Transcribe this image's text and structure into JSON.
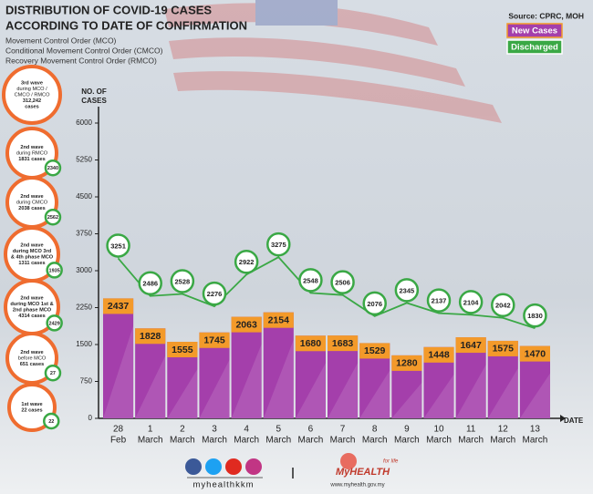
{
  "chart_data": {
    "type": "bar",
    "title_lines": [
      "DISTRIBUTION OF COVID-19 CASES",
      "ACCORDING TO DATE OF CONFIRMATION"
    ],
    "subtitle_lines": [
      "Movement Control Order (MCO)",
      "Conditional Movement Control Order (CMCO)",
      "Recovery Movement Control Order (RMCO)"
    ],
    "source": "Source: CPRC, MOH",
    "y_label": [
      "NO. OF",
      "CASES"
    ],
    "x_label": "DATE",
    "categories": [
      [
        "28",
        "Feb"
      ],
      [
        "1",
        "March"
      ],
      [
        "2",
        "March"
      ],
      [
        "3",
        "March"
      ],
      [
        "4",
        "March"
      ],
      [
        "5",
        "March"
      ],
      [
        "6",
        "March"
      ],
      [
        "7",
        "March"
      ],
      [
        "8",
        "March"
      ],
      [
        "9",
        "March"
      ],
      [
        "10",
        "March"
      ],
      [
        "11",
        "March"
      ],
      [
        "12",
        "March"
      ],
      [
        "13",
        "March"
      ]
    ],
    "series": [
      {
        "name": "New Cases",
        "color": "#a43fab",
        "label_color": "#f39a2a",
        "values": [
          2437,
          1828,
          1555,
          1745,
          2063,
          2154,
          1680,
          1683,
          1529,
          1280,
          1448,
          1647,
          1575,
          1470
        ]
      },
      {
        "name": "Discharged",
        "type": "line",
        "color": "#3aa845",
        "values": [
          3251,
          2486,
          2528,
          2276,
          2922,
          3275,
          2548,
          2506,
          2076,
          2345,
          2137,
          2104,
          2042,
          1830
        ]
      }
    ],
    "ylim": [
      0,
      6000
    ],
    "yticks": [
      0,
      750,
      1500,
      2250,
      3000,
      3750,
      4500,
      5250,
      6000
    ],
    "grid": false
  },
  "waves": [
    {
      "lines": [
        "3rd wave",
        "during MCO /",
        "CMCO / RMCO",
        "312,242",
        "cases"
      ]
    },
    {
      "lines": [
        "2nd wave",
        "during RMCO",
        "1831 cases"
      ],
      "discharged": "2340"
    },
    {
      "lines": [
        "2nd wave",
        "during CMCO",
        "2038 cases"
      ],
      "discharged": "2562"
    },
    {
      "lines": [
        "2nd wave",
        "during MCO 3rd",
        "& 4th phase MCO",
        "1311 cases"
      ],
      "discharged": "1935"
    },
    {
      "lines": [
        "2nd wave",
        "during MCO 1st &",
        "2nd phase MCO",
        "4314 cases"
      ],
      "discharged": "2429"
    },
    {
      "lines": [
        "2nd wave",
        "before MCO",
        "651 cases"
      ],
      "discharged": "27"
    },
    {
      "lines": [
        "1st wave",
        "22 cases"
      ],
      "discharged": "22"
    }
  ],
  "footer": {
    "handle": "myhealthkkm",
    "logo": "MyHEALTH",
    "tagline": "for life",
    "url": "www.myhealth.gov.my"
  }
}
